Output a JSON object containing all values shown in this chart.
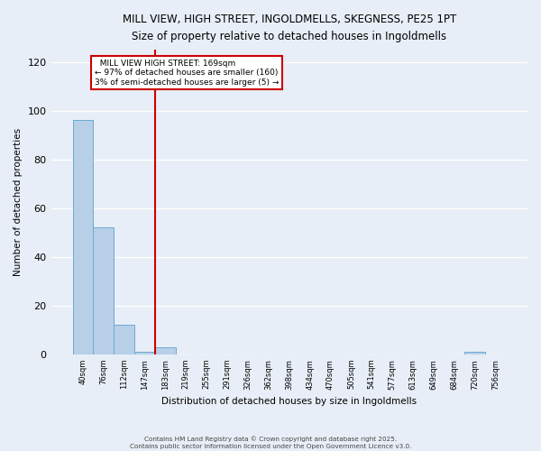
{
  "title_line1": "MILL VIEW, HIGH STREET, INGOLDMELLS, SKEGNESS, PE25 1PT",
  "title_line2": "Size of property relative to detached houses in Ingoldmells",
  "xlabel": "Distribution of detached houses by size in Ingoldmells",
  "ylabel": "Number of detached properties",
  "bins": [
    "40sqm",
    "76sqm",
    "112sqm",
    "147sqm",
    "183sqm",
    "219sqm",
    "255sqm",
    "291sqm",
    "326sqm",
    "362sqm",
    "398sqm",
    "434sqm",
    "470sqm",
    "505sqm",
    "541sqm",
    "577sqm",
    "613sqm",
    "649sqm",
    "684sqm",
    "720sqm",
    "756sqm"
  ],
  "values": [
    96,
    52,
    12,
    1,
    3,
    0,
    0,
    0,
    0,
    0,
    0,
    0,
    0,
    0,
    0,
    0,
    0,
    0,
    0,
    1,
    0
  ],
  "bar_color": "#b8cfe8",
  "bar_edge_color": "#6aaad4",
  "background_color": "#e8eef7",
  "grid_color": "#ffffff",
  "red_line_x": 3.5,
  "annotation_text": "  MILL VIEW HIGH STREET: 169sqm  \n← 97% of detached houses are smaller (160)\n3% of semi-detached houses are larger (5) →",
  "annotation_box_color": "#ffffff",
  "annotation_box_edge_color": "#cc0000",
  "ylim": [
    0,
    125
  ],
  "yticks": [
    0,
    20,
    40,
    60,
    80,
    100,
    120
  ],
  "footer_line1": "Contains HM Land Registry data © Crown copyright and database right 2025.",
  "footer_line2": "Contains public sector information licensed under the Open Government Licence v3.0."
}
